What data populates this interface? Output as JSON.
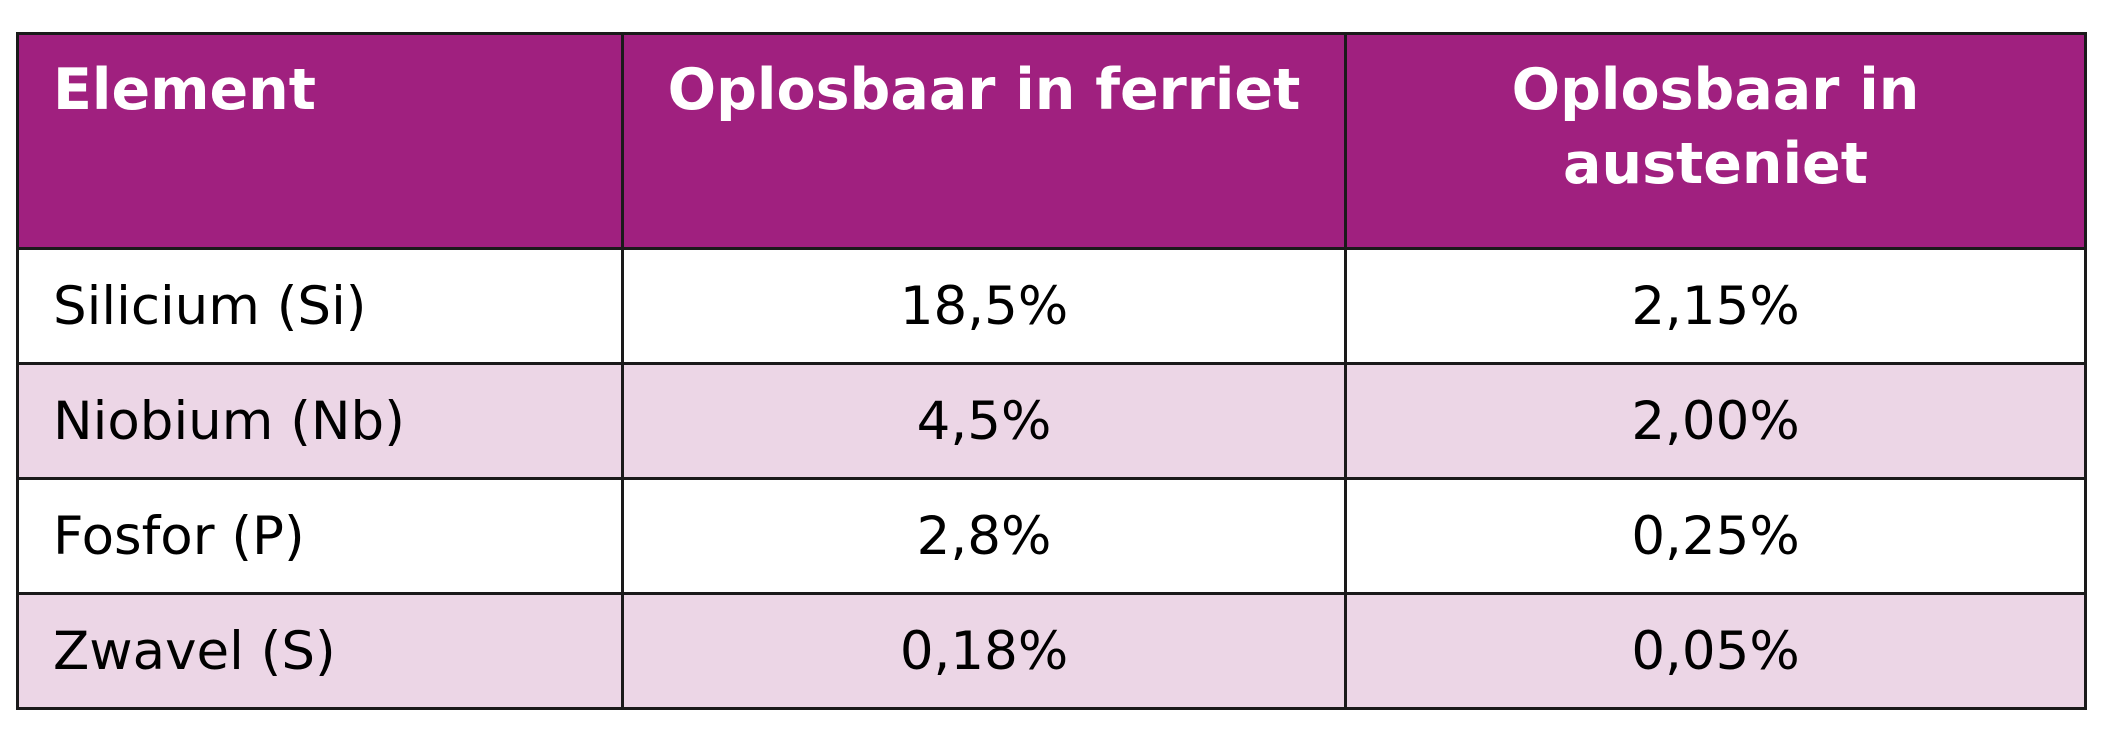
{
  "colors": {
    "header_background": "#a0207f",
    "header_text": "#ffffff",
    "row_tint": "#ecd6e6",
    "row_white": "#ffffff",
    "border": "#1a1a1a"
  },
  "table": {
    "headers": {
      "element": "Element",
      "ferrite": "Oplosbaar in ferriet",
      "austenite": "Oplosbaar in austeniet"
    },
    "rows": [
      {
        "element": "Silicium (Si)",
        "ferrite": "18,5%",
        "austenite": "2,15%"
      },
      {
        "element": "Niobium (Nb)",
        "ferrite": "4,5%",
        "austenite": "2,00%"
      },
      {
        "element": "Fosfor (P)",
        "ferrite": "2,8%",
        "austenite": "0,25%"
      },
      {
        "element": "Zwavel (S)",
        "ferrite": "0,18%",
        "austenite": "0,05%"
      }
    ]
  }
}
